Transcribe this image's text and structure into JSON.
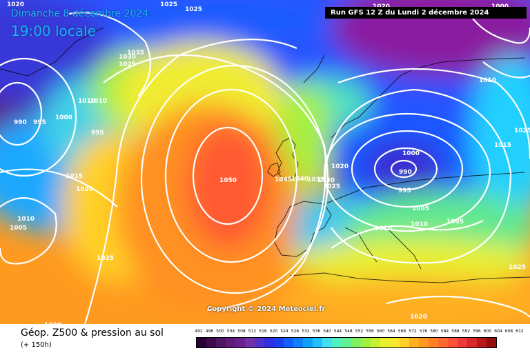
{
  "header": {
    "date": "Dimanche 8 décembre 2024",
    "time": "19:00 locale",
    "run": "Run GFS 12 Z du Lundi 2 décembre 2024"
  },
  "copyright": "Copyright © 2024 Meteociel.fr",
  "legend": {
    "title": "Géop. Z500 & pression au sol",
    "subtitle": "(+ 150h)",
    "scale_values": [
      "492",
      "496",
      "500",
      "504",
      "508",
      "512",
      "516",
      "520",
      "524",
      "528",
      "532",
      "536",
      "540",
      "544",
      "548",
      "552",
      "556",
      "560",
      "564",
      "568",
      "572",
      "576",
      "580",
      "584",
      "588",
      "592",
      "596",
      "600",
      "604",
      "608",
      "612"
    ],
    "scale_colors": [
      "#2a0033",
      "#3d0a4a",
      "#4f1462",
      "#5e1b78",
      "#6a2090",
      "#7030a8",
      "#5030c8",
      "#3030e0",
      "#1a40f0",
      "#1060ff",
      "#1080ff",
      "#10a0ff",
      "#20c0ff",
      "#40e0f0",
      "#50f0c0",
      "#60f090",
      "#80f060",
      "#a0f040",
      "#c8f030",
      "#e8f030",
      "#f8e830",
      "#ffd028",
      "#ffb020",
      "#ff9820",
      "#ff8020",
      "#ff6830",
      "#ff5038",
      "#f03838",
      "#d82828",
      "#b81818",
      "#901010"
    ]
  },
  "pressure_labels": [
    {
      "text": "1020"
    },
    {
      "text": "1025"
    },
    {
      "text": "1025"
    },
    {
      "text": "1020"
    },
    {
      "text": "1000"
    },
    {
      "text": "1035"
    },
    {
      "text": "1030"
    },
    {
      "text": "1025"
    },
    {
      "text": "1010"
    },
    {
      "text": "1010"
    },
    {
      "text": "990"
    },
    {
      "text": "995"
    },
    {
      "text": "1000"
    },
    {
      "text": "995"
    },
    {
      "text": "1015"
    },
    {
      "text": "1020"
    },
    {
      "text": "1010"
    },
    {
      "text": "1005"
    },
    {
      "text": "1025"
    },
    {
      "text": "1020"
    },
    {
      "text": "1050"
    },
    {
      "text": "1045"
    },
    {
      "text": "1040"
    },
    {
      "text": "1035"
    },
    {
      "text": "1030"
    },
    {
      "text": "1025"
    },
    {
      "text": "1020"
    },
    {
      "text": "1000"
    },
    {
      "text": "990"
    },
    {
      "text": "995"
    },
    {
      "text": "1005"
    },
    {
      "text": "1010"
    },
    {
      "text": "1010"
    },
    {
      "text": "1005"
    },
    {
      "text": "1010"
    },
    {
      "text": "1025"
    },
    {
      "text": "1015"
    },
    {
      "text": "1025"
    },
    {
      "text": "1020"
    }
  ],
  "icons": {
    "map": "weather-map"
  }
}
